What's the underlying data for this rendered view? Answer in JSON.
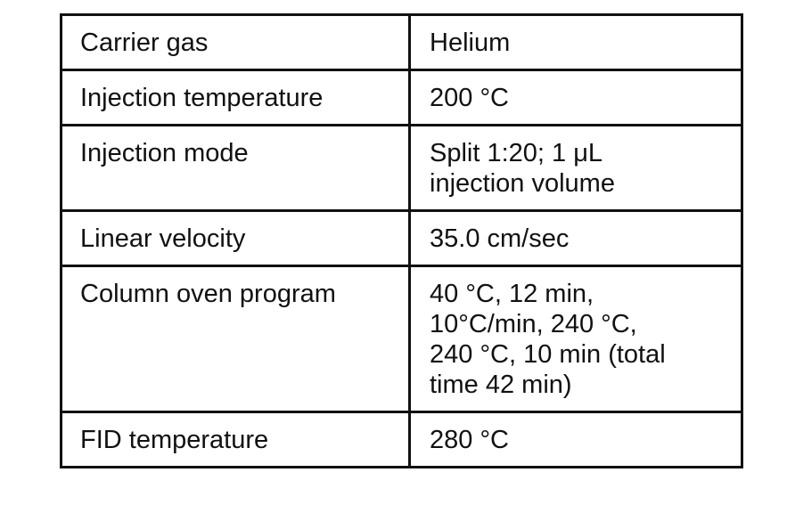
{
  "table": {
    "rows": [
      {
        "parameter": "Carrier gas",
        "value": "Helium"
      },
      {
        "parameter": "Injection temperature",
        "value": "200 °C"
      },
      {
        "parameter": "Injection mode",
        "value": "Split 1:20; 1 μL\ninjection volume"
      },
      {
        "parameter": "Linear velocity",
        "value": "35.0 cm/sec"
      },
      {
        "parameter": "Column oven program",
        "value": "40 °C, 12 min,\n10°C/min, 240 °C,\n240 °C, 10 min (total\ntime 42 min)"
      },
      {
        "parameter": "FID temperature",
        "value": "280 °C"
      }
    ]
  }
}
